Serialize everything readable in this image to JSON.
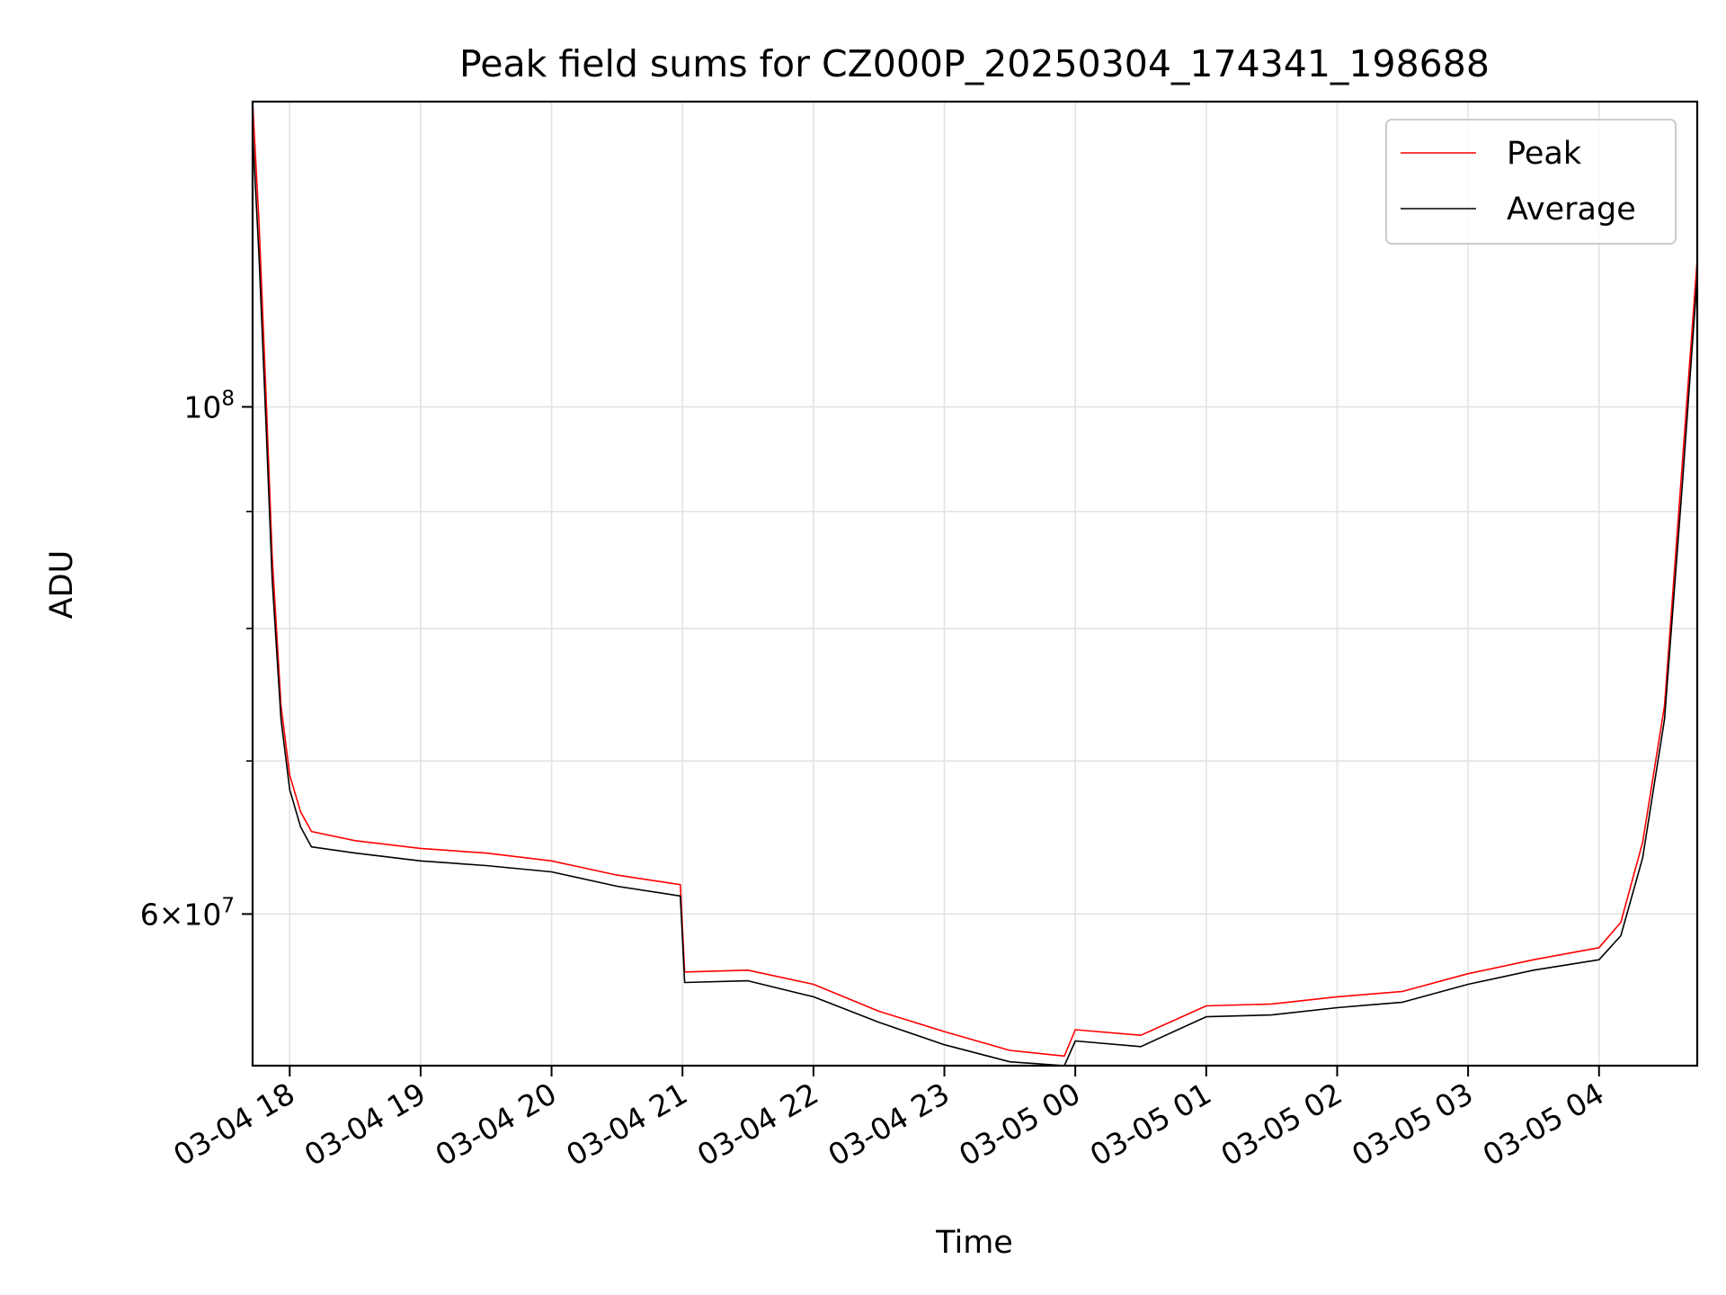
{
  "chart_data": {
    "type": "line",
    "title": "Peak field sums for CZ000P_20250304_174341_198688",
    "xlabel": "Time",
    "ylabel": "ADU",
    "yscale": "log",
    "grid": true,
    "legend_position": "top-right",
    "xlim": [
      "2025-03-04 17:43",
      "2025-03-05 04:45"
    ],
    "ylim": [
      51500000,
      136000000
    ],
    "x_ticks": [
      {
        "t": "2025-03-04 18:00",
        "label": "03-04 18"
      },
      {
        "t": "2025-03-04 19:00",
        "label": "03-04 19"
      },
      {
        "t": "2025-03-04 20:00",
        "label": "03-04 20"
      },
      {
        "t": "2025-03-04 21:00",
        "label": "03-04 21"
      },
      {
        "t": "2025-03-04 22:00",
        "label": "03-04 22"
      },
      {
        "t": "2025-03-04 23:00",
        "label": "03-04 23"
      },
      {
        "t": "2025-03-05 00:00",
        "label": "03-05 00"
      },
      {
        "t": "2025-03-05 01:00",
        "label": "03-05 01"
      },
      {
        "t": "2025-03-05 02:00",
        "label": "03-05 02"
      },
      {
        "t": "2025-03-05 03:00",
        "label": "03-05 03"
      },
      {
        "t": "2025-03-05 04:00",
        "label": "03-05 04"
      }
    ],
    "y_major_ticks": [
      {
        "value": 100000000,
        "base": "10",
        "exp": "8",
        "mant": ""
      },
      {
        "value": 60000000,
        "base": "10",
        "exp": "7",
        "mant": "6×"
      }
    ],
    "y_minor_ticks": [
      70000000,
      80000000,
      90000000
    ],
    "series": [
      {
        "name": "Peak",
        "color": "#ff0000",
        "points": [
          [
            "2025-03-04 17:43",
            136000000
          ],
          [
            "2025-03-04 17:46",
            120000000
          ],
          [
            "2025-03-04 17:49",
            102000000
          ],
          [
            "2025-03-04 17:52",
            86000000
          ],
          [
            "2025-03-04 17:56",
            74000000
          ],
          [
            "2025-03-04 18:00",
            69000000
          ],
          [
            "2025-03-04 18:05",
            66500000
          ],
          [
            "2025-03-04 18:10",
            65200000
          ],
          [
            "2025-03-04 18:30",
            64600000
          ],
          [
            "2025-03-04 19:00",
            64100000
          ],
          [
            "2025-03-04 19:30",
            63800000
          ],
          [
            "2025-03-04 20:00",
            63300000
          ],
          [
            "2025-03-04 20:30",
            62400000
          ],
          [
            "2025-03-04 20:59",
            61800000
          ],
          [
            "2025-03-04 21:01",
            56600000
          ],
          [
            "2025-03-04 21:30",
            56700000
          ],
          [
            "2025-03-04 22:00",
            55900000
          ],
          [
            "2025-03-04 22:30",
            54400000
          ],
          [
            "2025-03-04 23:00",
            53300000
          ],
          [
            "2025-03-04 23:30",
            52300000
          ],
          [
            "2025-03-04 23:55",
            52000000
          ],
          [
            "2025-03-05 00:00",
            53400000
          ],
          [
            "2025-03-05 00:30",
            53100000
          ],
          [
            "2025-03-05 01:00",
            54700000
          ],
          [
            "2025-03-05 01:30",
            54800000
          ],
          [
            "2025-03-05 02:00",
            55200000
          ],
          [
            "2025-03-05 02:30",
            55500000
          ],
          [
            "2025-03-05 03:00",
            56500000
          ],
          [
            "2025-03-05 03:30",
            57300000
          ],
          [
            "2025-03-05 04:00",
            58000000
          ],
          [
            "2025-03-05 04:10",
            59500000
          ],
          [
            "2025-03-05 04:20",
            64500000
          ],
          [
            "2025-03-05 04:30",
            74000000
          ],
          [
            "2025-03-05 04:38",
            94000000
          ],
          [
            "2025-03-05 04:45",
            116000000
          ]
        ]
      },
      {
        "name": "Average",
        "color": "#000000",
        "points": [
          [
            "2025-03-04 17:43",
            132000000
          ],
          [
            "2025-03-04 17:46",
            116000000
          ],
          [
            "2025-03-04 17:49",
            99000000
          ],
          [
            "2025-03-04 17:52",
            84000000
          ],
          [
            "2025-03-04 17:56",
            73000000
          ],
          [
            "2025-03-04 18:00",
            68000000
          ],
          [
            "2025-03-04 18:05",
            65500000
          ],
          [
            "2025-03-04 18:10",
            64200000
          ],
          [
            "2025-03-04 18:30",
            63800000
          ],
          [
            "2025-03-04 19:00",
            63300000
          ],
          [
            "2025-03-04 19:30",
            63000000
          ],
          [
            "2025-03-04 20:00",
            62600000
          ],
          [
            "2025-03-04 20:30",
            61700000
          ],
          [
            "2025-03-04 20:59",
            61100000
          ],
          [
            "2025-03-04 21:01",
            56000000
          ],
          [
            "2025-03-04 21:30",
            56100000
          ],
          [
            "2025-03-04 22:00",
            55200000
          ],
          [
            "2025-03-04 22:30",
            53800000
          ],
          [
            "2025-03-04 23:00",
            52600000
          ],
          [
            "2025-03-04 23:30",
            51700000
          ],
          [
            "2025-03-04 23:55",
            51500000
          ],
          [
            "2025-03-05 00:00",
            52800000
          ],
          [
            "2025-03-05 00:30",
            52500000
          ],
          [
            "2025-03-05 01:00",
            54100000
          ],
          [
            "2025-03-05 01:30",
            54200000
          ],
          [
            "2025-03-05 02:00",
            54600000
          ],
          [
            "2025-03-05 02:30",
            54900000
          ],
          [
            "2025-03-05 03:00",
            55900000
          ],
          [
            "2025-03-05 03:30",
            56700000
          ],
          [
            "2025-03-05 04:00",
            57300000
          ],
          [
            "2025-03-05 04:10",
            58700000
          ],
          [
            "2025-03-05 04:20",
            63500000
          ],
          [
            "2025-03-05 04:30",
            73000000
          ],
          [
            "2025-03-05 04:38",
            92000000
          ],
          [
            "2025-03-05 04:45",
            114000000
          ]
        ]
      }
    ]
  }
}
